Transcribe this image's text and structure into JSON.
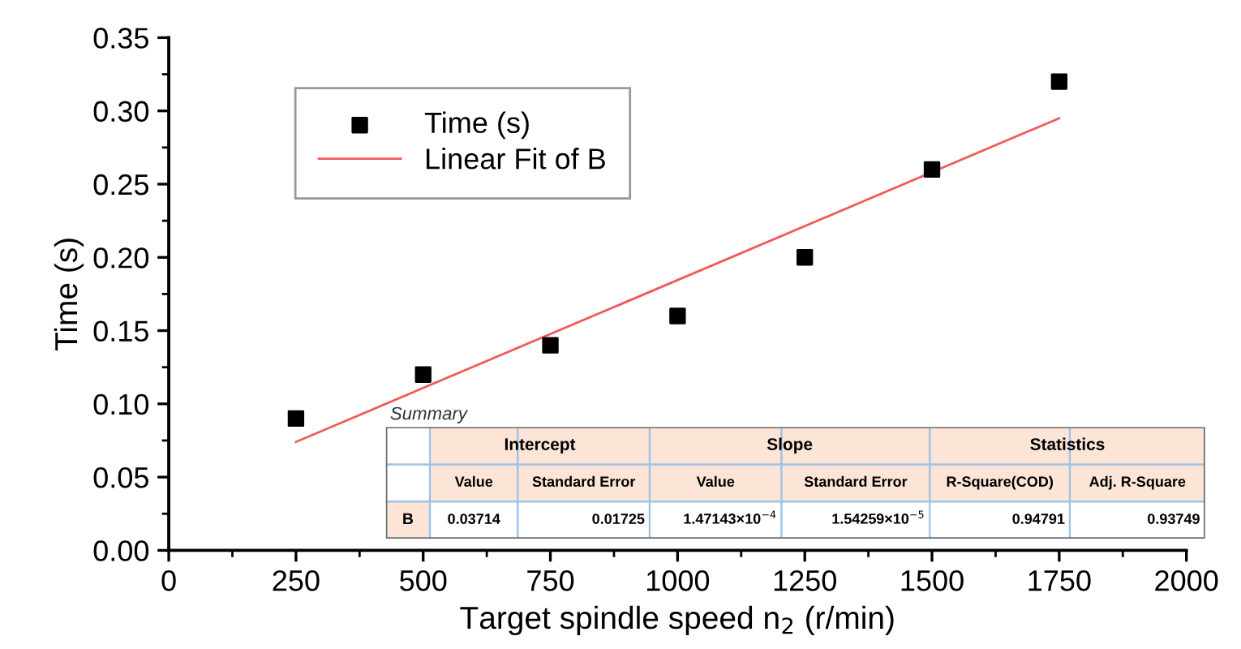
{
  "chart_data": [
    {
      "type": "scatter",
      "xlabel": "Target spindle speed n$_{2}$ (r/min)",
      "ylabel": "Time (s)",
      "xlim": [
        0,
        2000
      ],
      "xticks": [
        0,
        250,
        500,
        750,
        1000,
        1250,
        1500,
        1750,
        2000
      ],
      "ylim": [
        0,
        0.35
      ],
      "yticks": [
        {
          "value": 0,
          "label": "0.00"
        },
        {
          "value": 0.05,
          "label": "0.05"
        },
        {
          "value": 0.1,
          "label": "0.10"
        },
        {
          "value": 0.15,
          "label": "0.15"
        },
        {
          "value": 0.2,
          "label": "0.20"
        },
        {
          "value": 0.25,
          "label": "0.25"
        },
        {
          "value": 0.3,
          "label": "0.30"
        },
        {
          "value": 0.35,
          "label": "0.35"
        }
      ],
      "x": [
        250,
        500,
        750,
        1000,
        1250,
        1500,
        1750
      ],
      "series": [
        {
          "name": "Time (s)",
          "type": "scatter",
          "color": "#000000",
          "marker": "square",
          "values": [
            0.09,
            0.12,
            0.14,
            0.16,
            0.2,
            0.26,
            0.32
          ]
        },
        {
          "name": "Linear Fit of B",
          "type": "line",
          "color": "#f05a5a",
          "x": [
            250,
            1750
          ],
          "values": [
            0.074,
            0.295
          ],
          "marker": "none"
        }
      ],
      "legend": "top left",
      "grid": false
    },
    {
      "type": "other",
      "title": "Summary",
      "annotations": [
        "Intercept",
        "Slope",
        "Statistics",
        "Value",
        "Standard Error",
        "Value",
        "Standard Error",
        "R-Square(COD)",
        "Adj. R-Square",
        "B",
        "0.03714",
        "0.01725",
        "1.47143×10$^{−4}$",
        "1.54259×10$^{−5}$",
        "0.94791",
        "0.93749"
      ]
    }
  ]
}
